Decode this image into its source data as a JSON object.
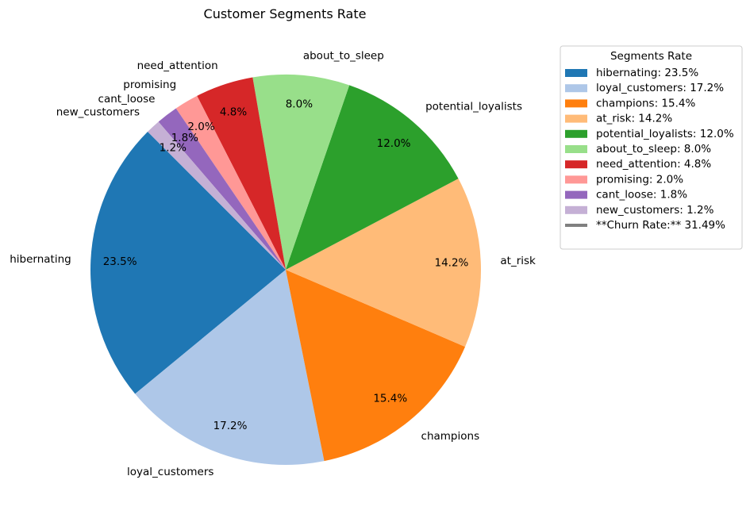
{
  "chart_data": {
    "type": "pie",
    "title": "Customer Segments Rate",
    "start_angle": 135,
    "direction": "counterclockwise",
    "slices": [
      {
        "label": "hibernating",
        "value": 23.5,
        "pct_label": "23.5%",
        "color": "#1f77b4"
      },
      {
        "label": "loyal_customers",
        "value": 17.2,
        "pct_label": "17.2%",
        "color": "#aec7e8"
      },
      {
        "label": "champions",
        "value": 15.4,
        "pct_label": "15.4%",
        "color": "#ff7f0e"
      },
      {
        "label": "at_risk",
        "value": 14.2,
        "pct_label": "14.2%",
        "color": "#ffbb78"
      },
      {
        "label": "potential_loyalists",
        "value": 12.0,
        "pct_label": "12.0%",
        "color": "#2ca02c"
      },
      {
        "label": "about_to_sleep",
        "value": 8.0,
        "pct_label": "8.0%",
        "color": "#98df8a"
      },
      {
        "label": "need_attention",
        "value": 4.8,
        "pct_label": "4.8%",
        "color": "#d62728"
      },
      {
        "label": "promising",
        "value": 2.0,
        "pct_label": "2.0%",
        "color": "#ff9896"
      },
      {
        "label": "cant_loose",
        "value": 1.8,
        "pct_label": "1.8%",
        "color": "#9467bd"
      },
      {
        "label": "new_customers",
        "value": 1.2,
        "pct_label": "1.2%",
        "color": "#c5b0d5"
      }
    ],
    "legend": {
      "title": "Segments Rate",
      "placement": "outside-right",
      "entries": [
        "hibernating: 23.5%",
        "loyal_customers: 17.2%",
        "champions: 15.4%",
        "at_risk: 14.2%",
        "potential_loyalists: 12.0%",
        "about_to_sleep: 8.0%",
        "need_attention: 4.8%",
        "promising: 2.0%",
        "cant_loose: 1.8%",
        "new_customers: 1.2%"
      ],
      "extra_entry": {
        "text": "**Churn Rate:** 31.49%",
        "color": "#808080",
        "style": "line"
      }
    }
  }
}
